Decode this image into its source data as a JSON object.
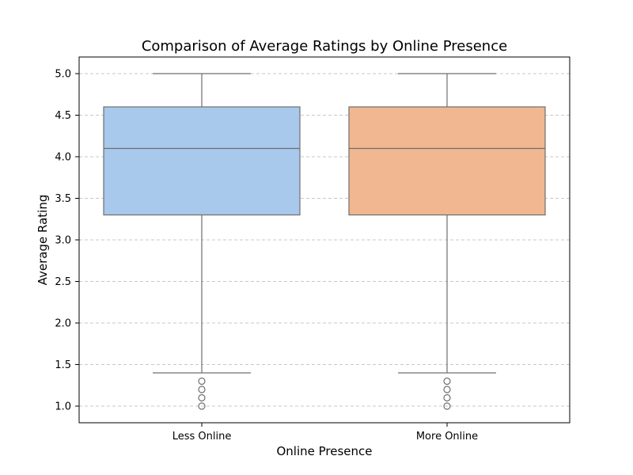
{
  "chart_data": {
    "type": "box",
    "title": "Comparison of Average Ratings by Online Presence",
    "xlabel": "Online Presence",
    "ylabel": "Average Rating",
    "ylim": [
      0.8,
      5.2
    ],
    "yticks": [
      "1.0",
      "1.5",
      "2.0",
      "2.5",
      "3.0",
      "3.5",
      "4.0",
      "4.5",
      "5.0"
    ],
    "grid": true,
    "categories": [
      "Less Online",
      "More Online"
    ],
    "boxes": [
      {
        "category": "Less Online",
        "color": "#a8c8ec",
        "min": 1.4,
        "q1": 3.3,
        "median": 4.1,
        "q3": 4.6,
        "max": 5.0,
        "outliers": [
          1.0,
          1.1,
          1.2,
          1.3
        ]
      },
      {
        "category": "More Online",
        "color": "#f0b790",
        "min": 1.4,
        "q1": 3.3,
        "median": 4.1,
        "q3": 4.6,
        "max": 5.0,
        "outliers": [
          1.0,
          1.1,
          1.2,
          1.3
        ]
      }
    ]
  }
}
